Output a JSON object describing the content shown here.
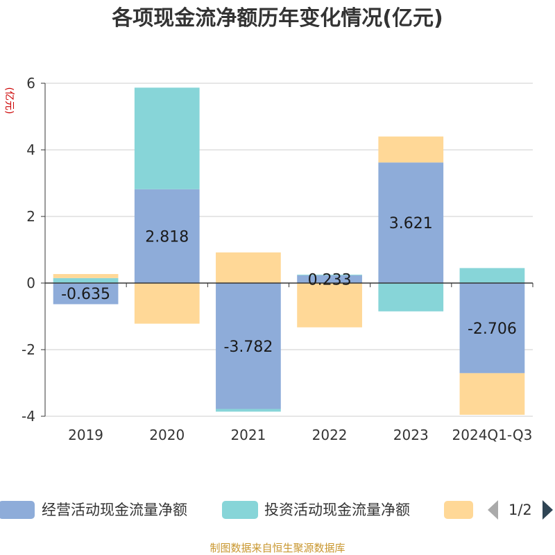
{
  "title": "各项现金流净额历年变化情况(亿元)",
  "source": "制图数据来自恒生聚源数据库",
  "legend_page": "1/2",
  "colors": {
    "operating": "#8eacd9",
    "investing": "#87d5d8",
    "financing": "#ffd897"
  },
  "chart_data": {
    "type": "bar",
    "stacked": true,
    "title": "各项现金流净额历年变化情况(亿元)",
    "ylabel": "(亿元)",
    "ylim": [
      -4,
      6
    ],
    "yticks": [
      6,
      4,
      2,
      0,
      -2,
      -4
    ],
    "grid": true,
    "legend_position": "bottom",
    "categories": [
      "2019",
      "2020",
      "2021",
      "2022",
      "2023",
      "2024Q1-Q3"
    ],
    "series": [
      {
        "name": "经营活动现金流量净额",
        "color": "#8eacd9",
        "values": [
          -0.635,
          2.818,
          -3.782,
          0.233,
          3.621,
          -2.706
        ],
        "labels": [
          "-0.635",
          "2.818",
          "-3.782",
          "0.233",
          "3.621",
          "-2.706"
        ]
      },
      {
        "name": "投资活动现金流量净额",
        "color": "#87d5d8",
        "values": [
          0.15,
          3.05,
          -0.08,
          0.02,
          -0.85,
          0.45
        ]
      },
      {
        "name": "",
        "color": "#ffd897",
        "values": [
          0.12,
          -1.22,
          0.92,
          -1.33,
          0.78,
          -1.25
        ]
      }
    ]
  }
}
